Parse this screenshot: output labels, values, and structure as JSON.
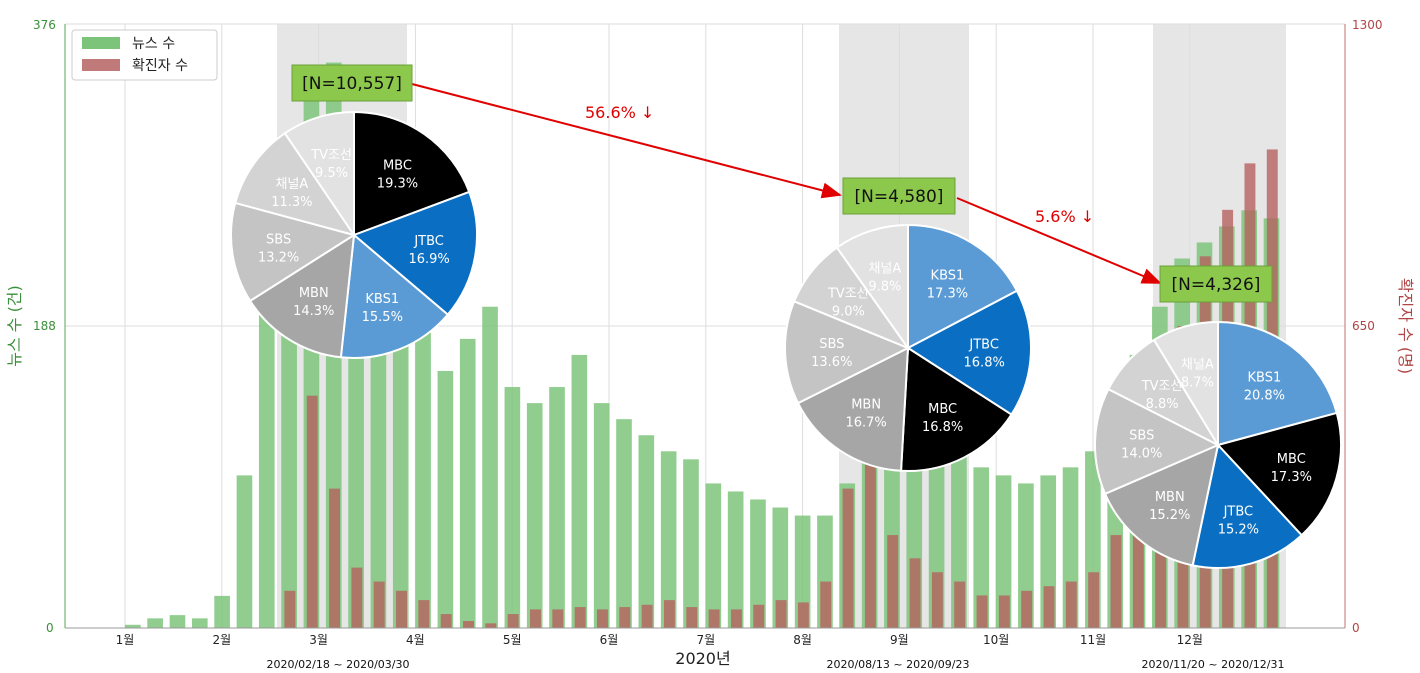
{
  "chart_data": {
    "type": "bar",
    "xlabel": "2020년",
    "y_left": {
      "label": "뉴스 수 (건)",
      "ticks": [
        "0",
        "188",
        "376"
      ],
      "range": [
        0,
        376
      ]
    },
    "y_right": {
      "label": "확진자 수 (명)",
      "ticks": [
        "0",
        "650",
        "1300"
      ],
      "range": [
        0,
        1300
      ]
    },
    "months": [
      "1월",
      "2월",
      "3월",
      "4월",
      "5월",
      "6월",
      "7월",
      "8월",
      "9월",
      "10월",
      "11월",
      "12월"
    ],
    "legend": [
      {
        "name": "뉴스 수",
        "color": "#7cc47a"
      },
      {
        "name": "확진자 수",
        "color": "#c17a7a"
      }
    ],
    "periods": [
      {
        "label": "2020/02/18 ~ 2020/03/30",
        "n": "[N=10,557]"
      },
      {
        "label": "2020/08/13 ~ 2020/09/23",
        "n": "[N=4,580]"
      },
      {
        "label": "2020/11/20 ~ 2020/12/31",
        "n": "[N=4,326]"
      }
    ],
    "changes": [
      "56.6% ↓",
      "5.6% ↓"
    ],
    "series": [
      {
        "name": "뉴스 수",
        "unit": "weekly approx",
        "values": [
          2,
          6,
          8,
          6,
          20,
          95,
          230,
          300,
          330,
          352,
          300,
          250,
          220,
          205,
          160,
          180,
          200,
          150,
          140,
          150,
          170,
          140,
          130,
          120,
          110,
          105,
          90,
          85,
          80,
          75,
          70,
          70,
          90,
          160,
          155,
          150,
          130,
          110,
          100,
          95,
          90,
          95,
          100,
          110,
          130,
          170,
          200,
          230,
          240,
          250,
          260,
          255
        ]
      },
      {
        "name": "확진자 수",
        "unit": "weekly approx",
        "values": [
          0,
          0,
          0,
          0,
          0,
          0,
          0,
          80,
          500,
          300,
          130,
          100,
          80,
          60,
          30,
          15,
          10,
          30,
          40,
          40,
          45,
          40,
          45,
          50,
          60,
          45,
          40,
          40,
          50,
          60,
          55,
          100,
          300,
          380,
          200,
          150,
          120,
          100,
          70,
          70,
          80,
          90,
          100,
          120,
          200,
          300,
          500,
          650,
          800,
          900,
          1000,
          1030
        ]
      }
    ],
    "pies": [
      {
        "slices": [
          {
            "name": "MBC",
            "pct": "19.3%",
            "value": 19.3,
            "color": "#000000",
            "text": "#ffffff"
          },
          {
            "name": "JTBC",
            "pct": "16.9%",
            "value": 16.9,
            "color": "#0a6fc2",
            "text": "#ffffff"
          },
          {
            "name": "KBS1",
            "pct": "15.5%",
            "value": 15.5,
            "color": "#5b9bd5",
            "text": "#ffffff"
          },
          {
            "name": "MBN",
            "pct": "14.3%",
            "value": 14.3,
            "color": "#a6a6a6",
            "text": "#ffffff"
          },
          {
            "name": "SBS",
            "pct": "13.2%",
            "value": 13.2,
            "color": "#c4c4c4",
            "text": "#ffffff"
          },
          {
            "name": "채널A",
            "pct": "11.3%",
            "value": 11.3,
            "color": "#d3d3d3",
            "text": "#ffffff"
          },
          {
            "name": "TV조선",
            "pct": "9.5%",
            "value": 9.5,
            "color": "#e2e2e2",
            "text": "#ffffff"
          }
        ]
      },
      {
        "slices": [
          {
            "name": "KBS1",
            "pct": "17.3%",
            "value": 17.3,
            "color": "#5b9bd5",
            "text": "#ffffff"
          },
          {
            "name": "JTBC",
            "pct": "16.8%",
            "value": 16.8,
            "color": "#0a6fc2",
            "text": "#ffffff"
          },
          {
            "name": "MBC",
            "pct": "16.8%",
            "value": 16.8,
            "color": "#000000",
            "text": "#ffffff"
          },
          {
            "name": "MBN",
            "pct": "16.7%",
            "value": 16.7,
            "color": "#a6a6a6",
            "text": "#ffffff"
          },
          {
            "name": "SBS",
            "pct": "13.6%",
            "value": 13.6,
            "color": "#c4c4c4",
            "text": "#ffffff"
          },
          {
            "name": "TV조선",
            "pct": "9.0%",
            "value": 9.0,
            "color": "#d3d3d3",
            "text": "#ffffff"
          },
          {
            "name": "채널A",
            "pct": "9.8%",
            "value": 9.8,
            "color": "#e2e2e2",
            "text": "#ffffff"
          }
        ]
      },
      {
        "slices": [
          {
            "name": "KBS1",
            "pct": "20.8%",
            "value": 20.8,
            "color": "#5b9bd5",
            "text": "#ffffff"
          },
          {
            "name": "MBC",
            "pct": "17.3%",
            "value": 17.3,
            "color": "#000000",
            "text": "#ffffff"
          },
          {
            "name": "JTBC",
            "pct": "15.2%",
            "value": 15.2,
            "color": "#0a6fc2",
            "text": "#ffffff"
          },
          {
            "name": "MBN",
            "pct": "15.2%",
            "value": 15.2,
            "color": "#a6a6a6",
            "text": "#ffffff"
          },
          {
            "name": "SBS",
            "pct": "14.0%",
            "value": 14.0,
            "color": "#c4c4c4",
            "text": "#ffffff"
          },
          {
            "name": "TV조선",
            "pct": "8.8%",
            "value": 8.8,
            "color": "#d3d3d3",
            "text": "#ffffff"
          },
          {
            "name": "채널A",
            "pct": "8.7%",
            "value": 8.7,
            "color": "#e2e2e2",
            "text": "#ffffff"
          }
        ]
      }
    ]
  }
}
